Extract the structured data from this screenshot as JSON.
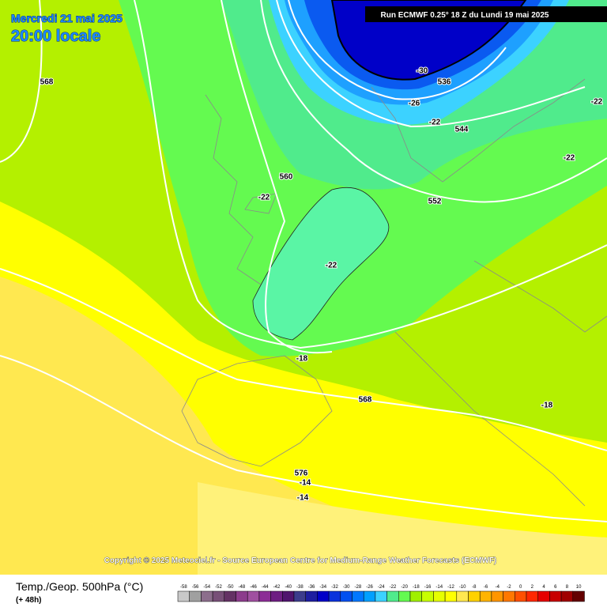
{
  "header": {
    "date": "Mercredi 21 mai 2025",
    "time": "20:00 locale",
    "run": "Run ECMWF 0.25° 18 Z du Lundi 19 mai 2025"
  },
  "contour_labels": [
    "568",
    "-30",
    "536",
    "-26",
    "-22",
    "544",
    "-22",
    "-22",
    "560",
    "-22",
    "552",
    "-22",
    "-18",
    "568",
    "-18",
    "576",
    "-14",
    "-14"
  ],
  "footer": {
    "copyright": "Copyright © 2025 Meteociel.fr - Source European Centre for Medium-Range Weather Forecasts (ECMWF)",
    "title": "Temp./Geop. 500hPa (°C)",
    "lead": "(+ 48h)"
  },
  "legend": {
    "ticks": [
      -58,
      -56,
      -54,
      -52,
      -50,
      -48,
      -46,
      -44,
      -42,
      -40,
      -38,
      -36,
      -34,
      -32,
      -30,
      -28,
      -26,
      -24,
      -22,
      -20,
      -18,
      -16,
      -14,
      -12,
      -10,
      -8,
      -6,
      -4,
      -2,
      0,
      2,
      4,
      6,
      8,
      10
    ],
    "colors": [
      "#c8c8c8",
      "#a0a0a0",
      "#8c6e8c",
      "#785078",
      "#643264",
      "#8c3c8c",
      "#a050a0",
      "#8c2d96",
      "#6e1e82",
      "#50146e",
      "#3c3c8c",
      "#1e1ea0",
      "#0000c8",
      "#0a32dc",
      "#0050f0",
      "#0078ff",
      "#00a0ff",
      "#3cd2ff",
      "#50eb8c",
      "#64fa50",
      "#a0f000",
      "#c8ff00",
      "#e6ff00",
      "#ffff00",
      "#ffe850",
      "#ffd200",
      "#ffb400",
      "#ff9600",
      "#ff7800",
      "#ff5000",
      "#ff2800",
      "#e60000",
      "#c80000",
      "#a00000",
      "#640000"
    ]
  }
}
